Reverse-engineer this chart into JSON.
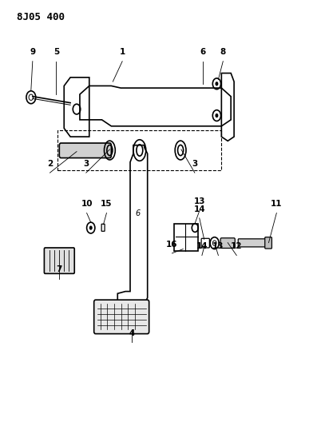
{
  "title": "8J05 400",
  "bg_color": "#ffffff",
  "line_color": "#000000",
  "fig_width": 3.97,
  "fig_height": 5.33,
  "dpi": 100
}
